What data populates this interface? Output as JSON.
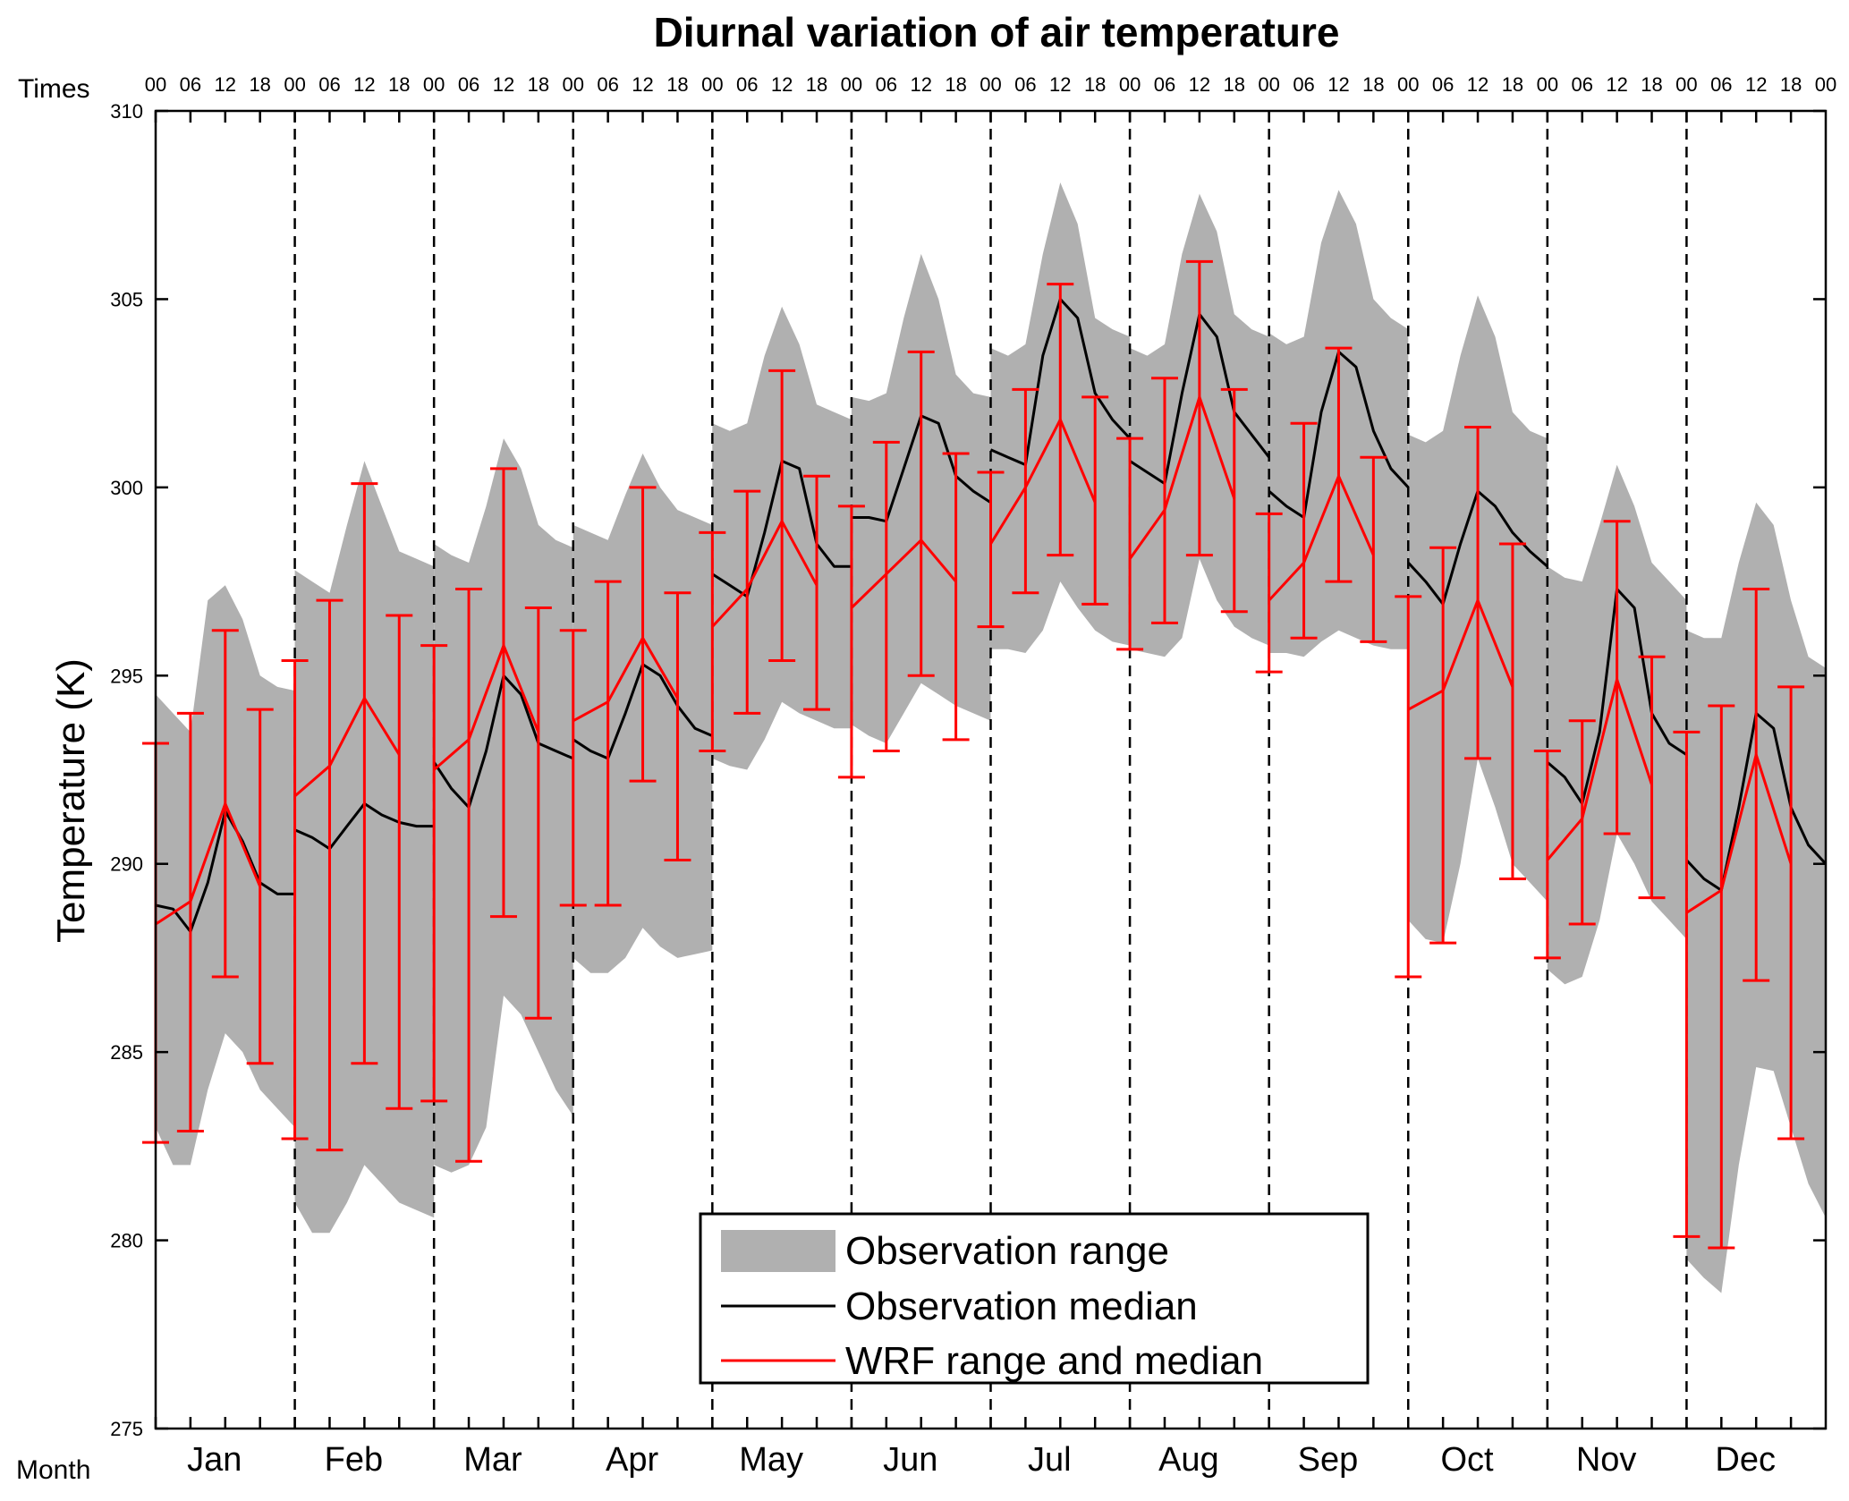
{
  "chart_data": {
    "type": "area",
    "title": "Diurnal variation of air temperature",
    "ylabel": "Temperature (K)",
    "top_axis_label": "Times",
    "bottom_axis_label": "Month",
    "ylim": [
      275,
      310
    ],
    "yticks": [
      275,
      280,
      285,
      290,
      295,
      300,
      305,
      310
    ],
    "hour_ticks": [
      "00",
      "06",
      "12",
      "18"
    ],
    "final_hour_tick": "00",
    "months": [
      "Jan",
      "Feb",
      "Mar",
      "Apr",
      "May",
      "Jun",
      "Jul",
      "Aug",
      "Sep",
      "Oct",
      "Nov",
      "Dec"
    ],
    "legend": {
      "position": "bottom-center",
      "items": [
        "Observation range",
        "Observation median",
        "WRF range and median"
      ]
    },
    "series": [
      {
        "name": "Observation range",
        "type": "band",
        "color": "#b0b0b0",
        "hours": [
          0,
          3,
          6,
          9,
          12,
          15,
          18,
          21,
          24
        ],
        "lower": [
          [
            283,
            282,
            282,
            284,
            285.5,
            285,
            284,
            283.5,
            283
          ],
          [
            281,
            280.2,
            280.2,
            281,
            282,
            281.5,
            281,
            280.8,
            280.6
          ],
          [
            282,
            281.8,
            282,
            283,
            286.5,
            286,
            285,
            284,
            283.3
          ],
          [
            287.5,
            287.1,
            287.1,
            287.5,
            288.3,
            287.8,
            287.5,
            287.6,
            287.7
          ],
          [
            292.8,
            292.6,
            292.5,
            293.3,
            294.3,
            294.0,
            293.8,
            293.6,
            293.6
          ],
          [
            293.7,
            293.4,
            293.2,
            294.0,
            294.8,
            294.5,
            294.2,
            294.0,
            293.8
          ],
          [
            295.7,
            295.7,
            295.6,
            296.2,
            297.5,
            296.8,
            296.2,
            295.9,
            295.8
          ],
          [
            295.7,
            295.6,
            295.5,
            296.0,
            298.1,
            297.0,
            296.3,
            296.0,
            295.8
          ],
          [
            295.6,
            295.6,
            295.5,
            295.9,
            296.2,
            296.0,
            295.8,
            295.7,
            295.7
          ],
          [
            288.5,
            288.0,
            287.9,
            290.0,
            292.8,
            291.5,
            290.0,
            289.5,
            289.0
          ],
          [
            287.2,
            286.8,
            287.0,
            288.5,
            290.8,
            290.0,
            289.0,
            288.5,
            288.0
          ],
          [
            279.5,
            279.0,
            278.6,
            282.0,
            284.6,
            284.5,
            283.0,
            281.5,
            280.6
          ]
        ],
        "upper": [
          [
            294.5,
            294.0,
            293.5,
            297.0,
            297.4,
            296.5,
            295.0,
            294.7,
            294.6
          ],
          [
            297.8,
            297.5,
            297.2,
            299.0,
            300.7,
            299.5,
            298.3,
            298.1,
            297.9
          ],
          [
            298.5,
            298.2,
            298.0,
            299.5,
            301.3,
            300.5,
            299.0,
            298.6,
            298.4
          ],
          [
            299.0,
            298.8,
            298.6,
            299.8,
            300.9,
            300.0,
            299.4,
            299.2,
            299.0
          ],
          [
            301.7,
            301.5,
            301.7,
            303.5,
            304.8,
            303.8,
            302.2,
            302.0,
            301.8
          ],
          [
            302.4,
            302.3,
            302.5,
            304.5,
            306.2,
            305.0,
            303.0,
            302.5,
            302.4
          ],
          [
            303.7,
            303.5,
            303.8,
            306.2,
            308.1,
            307.0,
            304.5,
            304.2,
            304.0
          ],
          [
            303.7,
            303.5,
            303.8,
            306.2,
            307.8,
            306.8,
            304.6,
            304.2,
            304.0
          ],
          [
            304.1,
            303.8,
            304.0,
            306.5,
            307.9,
            307.0,
            305.0,
            304.5,
            304.2
          ],
          [
            301.4,
            301.2,
            301.5,
            303.5,
            305.1,
            304.0,
            302.0,
            301.5,
            301.3
          ],
          [
            297.9,
            297.6,
            297.5,
            299.0,
            300.6,
            299.5,
            298.0,
            297.5,
            297.0
          ],
          [
            296.2,
            296.0,
            296.0,
            298.0,
            299.6,
            299.0,
            297.0,
            295.5,
            295.2
          ]
        ]
      },
      {
        "name": "Observation median",
        "type": "line",
        "color": "#000000",
        "hours": [
          0,
          3,
          6,
          9,
          12,
          15,
          18,
          21,
          24
        ],
        "values": [
          [
            288.9,
            288.8,
            288.2,
            289.5,
            291.4,
            290.6,
            289.5,
            289.2,
            289.2
          ],
          [
            290.9,
            290.7,
            290.4,
            291.0,
            291.6,
            291.3,
            291.1,
            291.0,
            291.0
          ],
          [
            292.7,
            292.0,
            291.5,
            293.0,
            295.0,
            294.5,
            293.2,
            293.0,
            292.8
          ],
          [
            293.3,
            293.0,
            292.8,
            294.0,
            295.3,
            295.0,
            294.2,
            293.6,
            293.4
          ],
          [
            297.7,
            297.4,
            297.1,
            298.8,
            300.7,
            300.5,
            298.5,
            297.9,
            297.9
          ],
          [
            299.2,
            299.2,
            299.1,
            300.5,
            301.9,
            301.7,
            300.3,
            299.9,
            299.6
          ],
          [
            301.0,
            300.8,
            300.6,
            303.5,
            305.0,
            304.5,
            302.5,
            301.8,
            301.3
          ],
          [
            300.7,
            300.4,
            300.1,
            302.5,
            304.6,
            304.0,
            302.0,
            301.4,
            300.8
          ],
          [
            299.9,
            299.5,
            299.2,
            302.0,
            303.6,
            303.2,
            301.5,
            300.5,
            300.0
          ],
          [
            298.0,
            297.5,
            296.9,
            298.5,
            299.9,
            299.5,
            298.8,
            298.3,
            297.9
          ],
          [
            292.7,
            292.3,
            291.6,
            293.5,
            297.3,
            296.8,
            294.0,
            293.2,
            292.9
          ],
          [
            290.1,
            289.6,
            289.3,
            291.5,
            294.0,
            293.6,
            291.5,
            290.5,
            290.0
          ]
        ]
      },
      {
        "name": "WRF range and median",
        "type": "errorbar",
        "color": "#ff0000",
        "hours": [
          0,
          6,
          12,
          18
        ],
        "median": [
          [
            288.4,
            289.0,
            291.6,
            289.4
          ],
          [
            291.8,
            292.6,
            294.4,
            292.9
          ],
          [
            292.5,
            293.3,
            295.8,
            293.5
          ],
          [
            293.8,
            294.3,
            296.0,
            294.4
          ],
          [
            296.3,
            297.3,
            299.1,
            297.4
          ],
          [
            296.8,
            297.7,
            298.6,
            297.5
          ],
          [
            298.5,
            300.0,
            301.8,
            299.6
          ],
          [
            298.1,
            299.4,
            302.4,
            299.7
          ],
          [
            297.0,
            298.0,
            300.3,
            298.2
          ],
          [
            294.1,
            294.6,
            297.0,
            294.7
          ],
          [
            290.1,
            291.2,
            294.9,
            292.1
          ],
          [
            288.7,
            289.3,
            292.9,
            290.0
          ]
        ],
        "lower": [
          [
            282.6,
            282.9,
            287.0,
            284.7
          ],
          [
            282.7,
            282.4,
            284.7,
            283.5
          ],
          [
            283.7,
            282.1,
            288.6,
            285.9
          ],
          [
            288.9,
            288.9,
            292.2,
            290.1
          ],
          [
            293.0,
            294.0,
            295.4,
            294.1
          ],
          [
            292.3,
            293.0,
            295.0,
            293.3
          ],
          [
            296.3,
            297.2,
            298.2,
            296.9
          ],
          [
            295.7,
            296.4,
            298.2,
            296.7
          ],
          [
            295.1,
            296.0,
            297.5,
            295.9
          ],
          [
            287.0,
            287.9,
            292.8,
            289.6
          ],
          [
            287.5,
            288.4,
            290.8,
            289.1
          ],
          [
            280.1,
            279.8,
            286.9,
            282.7
          ]
        ],
        "upper": [
          [
            293.2,
            294.0,
            296.2,
            294.1
          ],
          [
            295.4,
            297.0,
            300.1,
            296.6
          ],
          [
            295.8,
            297.3,
            300.5,
            296.8
          ],
          [
            296.2,
            297.5,
            300.0,
            297.2
          ],
          [
            298.8,
            299.9,
            303.1,
            300.3
          ],
          [
            299.5,
            301.2,
            303.6,
            300.9
          ],
          [
            300.4,
            302.6,
            305.4,
            302.4
          ],
          [
            301.3,
            302.9,
            306.0,
            302.6
          ],
          [
            299.3,
            301.7,
            303.7,
            300.8
          ],
          [
            297.1,
            298.4,
            301.6,
            298.5
          ],
          [
            293.0,
            293.8,
            299.1,
            295.5
          ],
          [
            293.5,
            294.2,
            297.3,
            294.7
          ]
        ]
      }
    ]
  }
}
